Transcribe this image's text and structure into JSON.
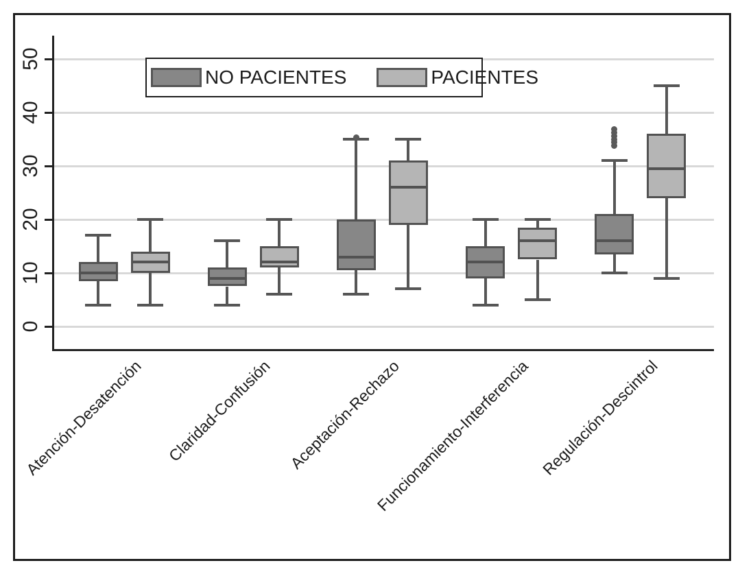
{
  "figure": {
    "background": "#ffffff",
    "border_color": "#1c1c1c"
  },
  "legend": {
    "items": [
      {
        "label": "NO PACIENTES",
        "color": "#878787"
      },
      {
        "label": "PACIENTES",
        "color": "#b5b5b5"
      }
    ]
  },
  "colors": {
    "dark_series_fill": "#878787",
    "light_series_fill": "#b5b5b5",
    "box_line": "#525252",
    "whisker_line": "#565656",
    "gridline": "#d8d8d8",
    "axis": "#222222",
    "text": "#1c1c1c"
  },
  "chart_data": {
    "type": "boxplot",
    "title": "",
    "xlabel": "",
    "ylabel": "",
    "grid": true,
    "legend_position": "top-center-inside",
    "ylim": [
      0,
      50
    ],
    "yticks": [
      0,
      10,
      20,
      30,
      40,
      50
    ],
    "categories": [
      "Atención-Desatención",
      "Claridad-Confusión",
      "Aceptación-Rechazo",
      "Funcionamiento-Interferencia",
      "Regulación-Descintrol"
    ],
    "series": [
      {
        "name": "NO PACIENTES",
        "fill": "#878787",
        "boxes": [
          {
            "low": 4,
            "q1": 8.5,
            "median": 10,
            "q3": 12,
            "high": 17,
            "outliers": []
          },
          {
            "low": 4,
            "q1": 7.5,
            "median": 9,
            "q3": 11,
            "high": 16,
            "outliers": []
          },
          {
            "low": 6,
            "q1": 10.5,
            "median": 13,
            "q3": 20,
            "high": 35,
            "outliers": [
              35.3
            ]
          },
          {
            "low": 4,
            "q1": 9,
            "median": 12,
            "q3": 15,
            "high": 20,
            "outliers": []
          },
          {
            "low": 10,
            "q1": 13.5,
            "median": 16,
            "q3": 21,
            "high": 31,
            "outliers": [
              33.8,
              34.4,
              35,
              35.6,
              36.2,
              36.8
            ]
          }
        ]
      },
      {
        "name": "PACIENTES",
        "fill": "#b5b5b5",
        "boxes": [
          {
            "low": 4,
            "q1": 10,
            "median": 12,
            "q3": 14,
            "high": 20,
            "outliers": []
          },
          {
            "low": 6,
            "q1": 11,
            "median": 12,
            "q3": 15,
            "high": 20,
            "outliers": []
          },
          {
            "low": 7,
            "q1": 19,
            "median": 26,
            "q3": 31,
            "high": 35,
            "outliers": []
          },
          {
            "low": 5,
            "q1": 12.5,
            "median": 16,
            "q3": 18.5,
            "high": 20,
            "outliers": []
          },
          {
            "low": 9,
            "q1": 24,
            "median": 29.5,
            "q3": 36,
            "high": 45,
            "outliers": []
          }
        ]
      }
    ]
  }
}
